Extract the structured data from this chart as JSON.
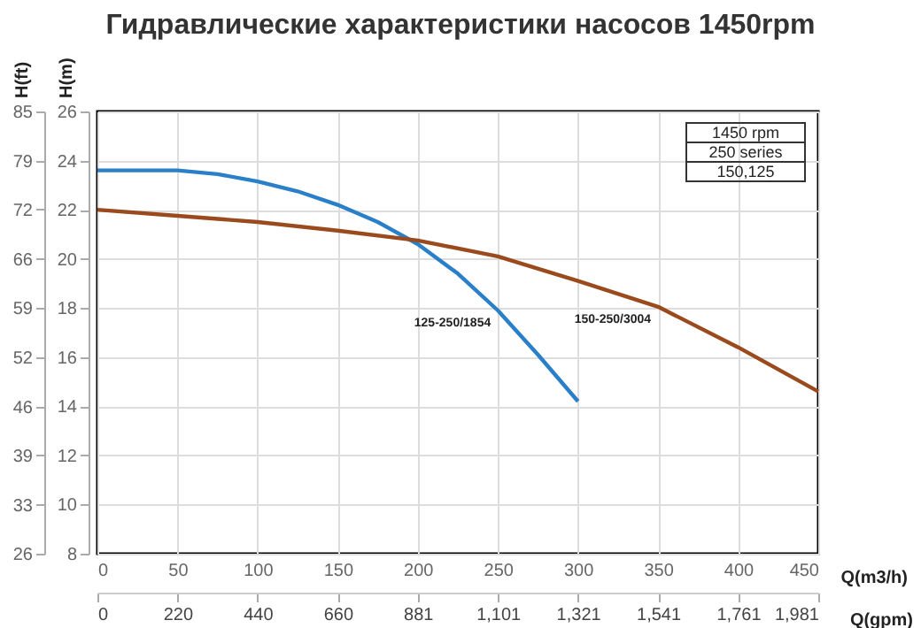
{
  "chart_data": {
    "type": "line",
    "title": "Гидравлические характеристики насосов 1450rpm",
    "xlabel": "Q(m3/h)",
    "x2label": "Q(gpm)",
    "ylabel": "H(m)",
    "y2label": "H(ft)",
    "xlim": [
      0,
      450
    ],
    "xticks": [
      0,
      50,
      100,
      150,
      200,
      250,
      300,
      350,
      400,
      450
    ],
    "x2lim": [
      0,
      1981.3
    ],
    "x2ticks": [
      0,
      {
        "value": 220.1,
        "label": "220"
      },
      {
        "value": 440.3,
        "label": "440"
      },
      {
        "value": 660.4,
        "label": "660"
      },
      {
        "value": 880.5,
        "label": "881"
      },
      {
        "value": 1100.7,
        "label": "1,101"
      },
      {
        "value": 1320.8,
        "label": "1,321"
      },
      {
        "value": 1540.9,
        "label": "1,541"
      },
      {
        "value": 1761.0,
        "label": "1,761"
      },
      {
        "value": 1981.3,
        "label": "1,981"
      }
    ],
    "ylim": [
      8,
      26
    ],
    "yticks": [
      8,
      10,
      12,
      14,
      16,
      18,
      20,
      22,
      24,
      26
    ],
    "y2lim": [
      26.25,
      85.3
    ],
    "y2ticks": [
      {
        "value": 26.25,
        "label": "26"
      },
      {
        "value": 32.8,
        "label": "33"
      },
      {
        "value": 39.4,
        "label": "39"
      },
      {
        "value": 45.9,
        "label": "46"
      },
      {
        "value": 52.5,
        "label": "52"
      },
      {
        "value": 59.1,
        "label": "59"
      },
      {
        "value": 65.6,
        "label": "66"
      },
      {
        "value": 72.2,
        "label": "72"
      },
      {
        "value": 78.7,
        "label": "79"
      },
      {
        "value": 85.3,
        "label": "85"
      }
    ],
    "grid": true,
    "marker": "none",
    "line_style": "solid",
    "annotations": [
      "1450 rpm",
      "250 series",
      "150,125"
    ],
    "series": [
      {
        "name": "125-250/1854",
        "color": "#2a7fc9",
        "x": [
          0,
          25,
          50,
          75,
          100,
          125,
          150,
          175,
          200,
          225,
          250,
          275,
          300
        ],
        "values": [
          23.6,
          23.6,
          23.6,
          23.45,
          23.15,
          22.75,
          22.2,
          21.5,
          20.6,
          19.4,
          17.9,
          16.1,
          14.2
        ]
      },
      {
        "name": "150-250/3004",
        "color": "#9a4a1c",
        "x": [
          0,
          50,
          100,
          150,
          200,
          250,
          300,
          350,
          400,
          450
        ],
        "values": [
          22.0,
          21.75,
          21.5,
          21.15,
          20.75,
          20.1,
          19.1,
          18.05,
          16.4,
          14.6
        ]
      }
    ]
  }
}
